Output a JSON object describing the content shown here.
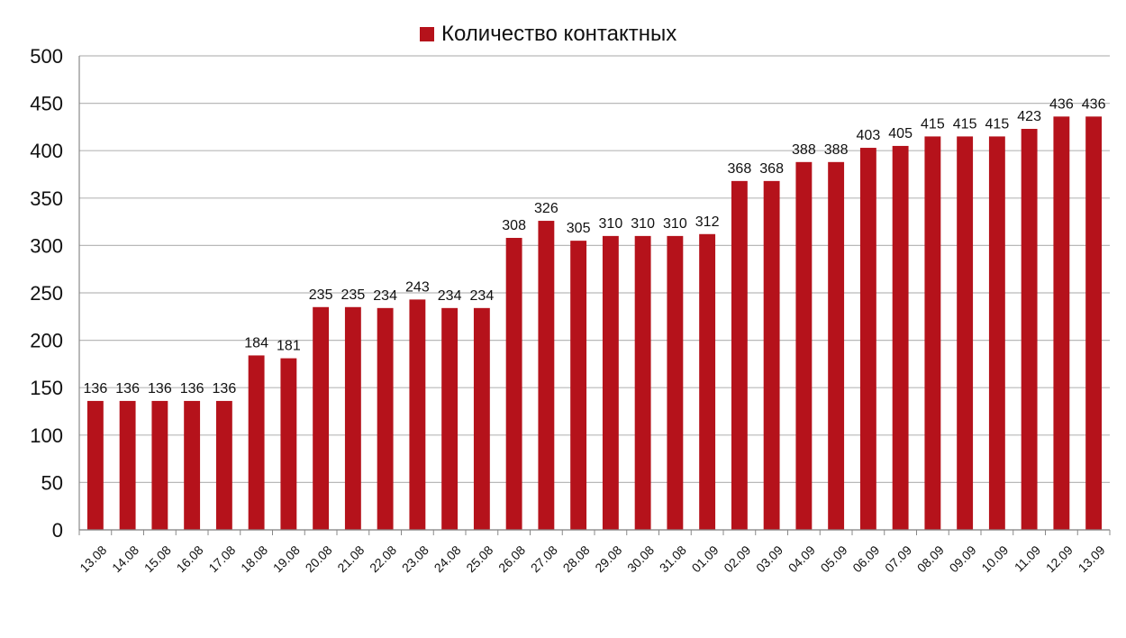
{
  "chart_data": {
    "type": "bar",
    "categories": [
      "13.08",
      "14.08",
      "15.08",
      "16.08",
      "17.08",
      "18.08",
      "19.08",
      "20.08",
      "21.08",
      "22.08",
      "23.08",
      "24.08",
      "25.08",
      "26.08",
      "27.08",
      "28.08",
      "29.08",
      "30.08",
      "31.08",
      "01.09",
      "02.09",
      "03.09",
      "04.09",
      "05.09",
      "06.09",
      "07.09",
      "08.09",
      "09.09",
      "10.09",
      "11.09",
      "12.09",
      "13.09"
    ],
    "series": [
      {
        "name": "Количество контактных",
        "values": [
          136,
          136,
          136,
          136,
          136,
          184,
          181,
          235,
          235,
          234,
          243,
          234,
          234,
          308,
          326,
          305,
          310,
          310,
          310,
          312,
          368,
          368,
          388,
          388,
          403,
          405,
          415,
          415,
          415,
          423,
          436,
          436
        ]
      }
    ],
    "ylim": [
      0,
      500
    ],
    "yticks": [
      0,
      50,
      100,
      150,
      200,
      250,
      300,
      350,
      400,
      450,
      500
    ],
    "grid": true,
    "legend_position": "top-center",
    "xlabel": "",
    "ylabel": "",
    "title": ""
  },
  "colors": {
    "bar": "#b5121b",
    "grid": "#b9b9b9",
    "axis": "#888888",
    "text": "#111111"
  }
}
